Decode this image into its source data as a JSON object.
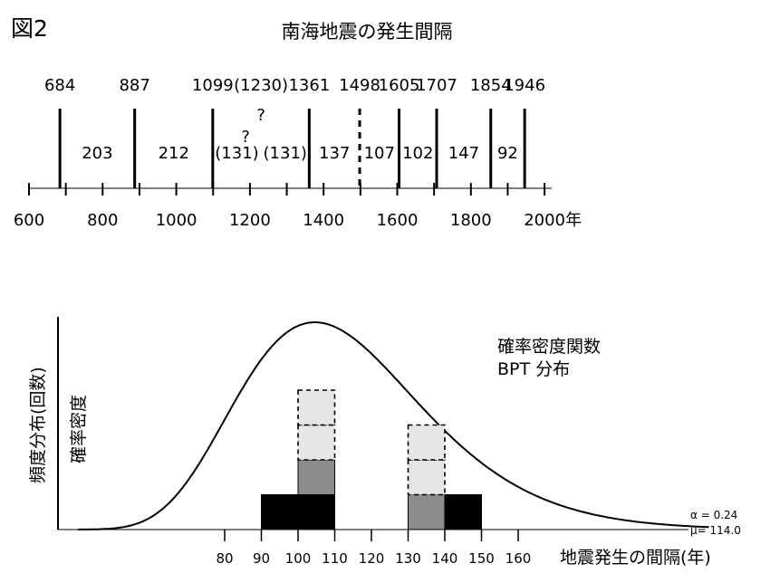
{
  "figure_label": "図2",
  "chart_data": [
    {
      "type": "timeline",
      "title": "南海地震の発生間隔",
      "event_years": [
        {
          "label": "684",
          "x": 684,
          "style": "solid"
        },
        {
          "label": "887",
          "x": 887,
          "style": "solid"
        },
        {
          "label": "1099",
          "x": 1099,
          "style": "solid"
        },
        {
          "label": "(1230)",
          "x": 1230,
          "style": "uncertain"
        },
        {
          "label": "1361",
          "x": 1361,
          "style": "solid"
        },
        {
          "label": "1498",
          "x": 1498,
          "style": "dashed"
        },
        {
          "label": "1605",
          "x": 1605,
          "style": "solid"
        },
        {
          "label": "1707",
          "x": 1707,
          "style": "solid"
        },
        {
          "label": "1854",
          "x": 1854,
          "style": "solid"
        },
        {
          "label": "1946",
          "x": 1946,
          "style": "solid"
        }
      ],
      "uncertain_marks": [
        "?",
        "?"
      ],
      "intervals": [
        {
          "label": "203",
          "from": 684,
          "to": 887
        },
        {
          "label": "212",
          "from": 887,
          "to": 1099
        },
        {
          "label": "(131)",
          "from": 1099,
          "to": 1230
        },
        {
          "label": "(131)",
          "from": 1230,
          "to": 1361
        },
        {
          "label": "137",
          "from": 1361,
          "to": 1498
        },
        {
          "label": "107",
          "from": 1498,
          "to": 1605
        },
        {
          "label": "102",
          "from": 1605,
          "to": 1707
        },
        {
          "label": "147",
          "from": 1707,
          "to": 1854
        },
        {
          "label": "92",
          "from": 1854,
          "to": 1946
        }
      ],
      "axis_ticks": [
        600,
        800,
        1000,
        1200,
        1400,
        1600,
        1800,
        2000
      ],
      "axis_unit": "年",
      "xlim": [
        600,
        2000
      ]
    },
    {
      "type": "bar",
      "ylabel": "頻度分布(回数)",
      "ylabel2": "確率密度",
      "xlabel": "地震発生の間隔(年)",
      "x_ticks": [
        80,
        90,
        100,
        110,
        120,
        130,
        140,
        150,
        160
      ],
      "bins": [
        {
          "from": 90,
          "to": 100,
          "solid_black": 1,
          "solid_gray": 0,
          "dashed": 0
        },
        {
          "from": 100,
          "to": 110,
          "solid_black": 1,
          "solid_gray": 1,
          "dashed": 2
        },
        {
          "from": 130,
          "to": 140,
          "solid_black": 0,
          "solid_gray": 1,
          "dashed": 2
        },
        {
          "from": 140,
          "to": 150,
          "solid_black": 1,
          "solid_gray": 0,
          "dashed": 0
        }
      ],
      "curve": {
        "label_line1": "確率密度関数",
        "label_line2": "BPT 分布",
        "mu": 114.0,
        "alpha": 0.24
      },
      "params": {
        "alpha_text": "α = 0.24",
        "mu_text": "μ= 114.0"
      },
      "colors": {
        "black": "#000000",
        "gray": "#8c8c8c",
        "dashed_fill": "#e6e6e6"
      }
    }
  ]
}
